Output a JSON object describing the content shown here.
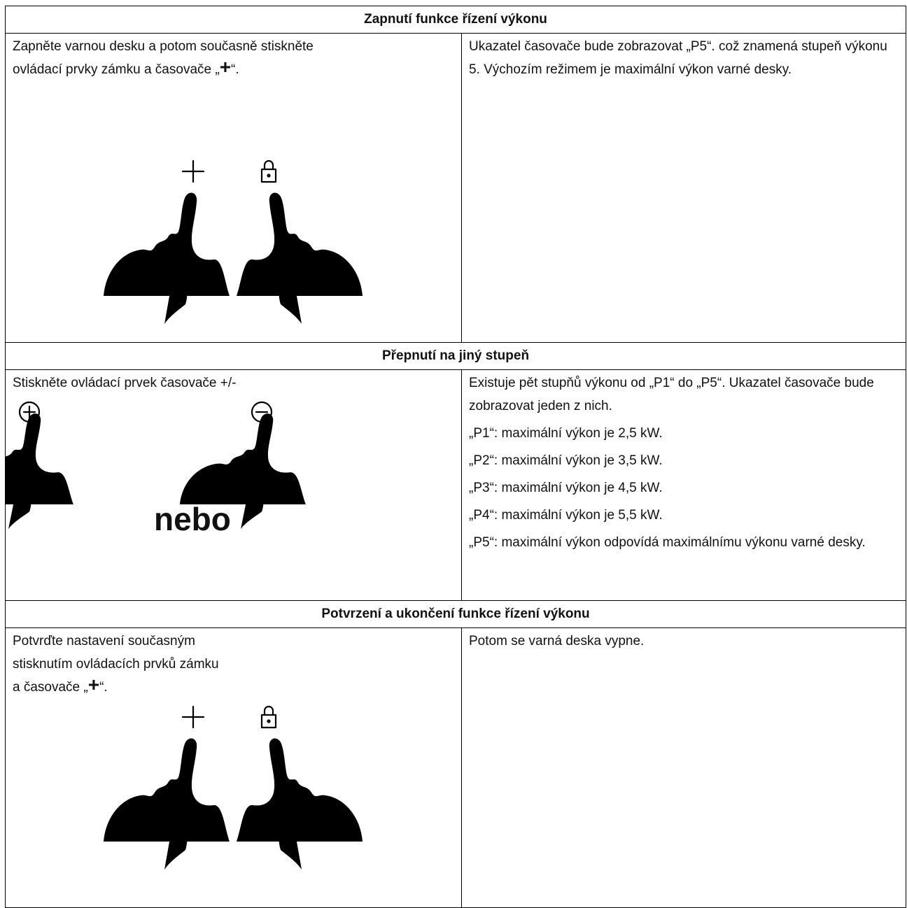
{
  "sections": [
    {
      "title": "Zapnutí funkce řízení výkonu",
      "left": {
        "lines": [
          "Zapněte varnou desku a potom současně stiskněte",
          {
            "text": "ovládací prvky zámku a časovače „",
            "symbol": "+",
            "end": "“."
          }
        ]
      },
      "right": {
        "paragraphs": [
          "Ukazatel časovače bude zobrazovat „P5“. což znamená stupeň výkonu 5. Výchozím režimem je maximální výkon varné desky."
        ]
      }
    },
    {
      "title": "Přepnutí na jiný stupeň",
      "left": {
        "lines": [
          "Stiskněte ovládací prvek časovače +/-"
        ],
        "or": "nebo"
      },
      "right": {
        "paragraphs": [
          "Existuje pět stupňů výkonu od „P1“ do „P5“. Ukazatel časovače bude zobrazovat jeden z nich.",
          "„P1“: maximální výkon je 2,5 kW.",
          "„P2“: maximální výkon je 3,5 kW.",
          "„P3“: maximální výkon je 4,5 kW.",
          "„P4“: maximální výkon je 5,5 kW.",
          "„P5“: maximální výkon odpovídá maximálnímu výkonu varné desky."
        ]
      }
    },
    {
      "title": "Potvrzení a ukončení funkce řízení výkonu",
      "left": {
        "lines": [
          "Potvrďte nastavení současným",
          "stisknutím ovládacích prvků zámku",
          {
            "text": "a časovače „",
            "symbol": "+",
            "end": "“."
          }
        ]
      },
      "right": {
        "paragraphs": [
          "Potom se varná deska vypne."
        ]
      }
    }
  ]
}
